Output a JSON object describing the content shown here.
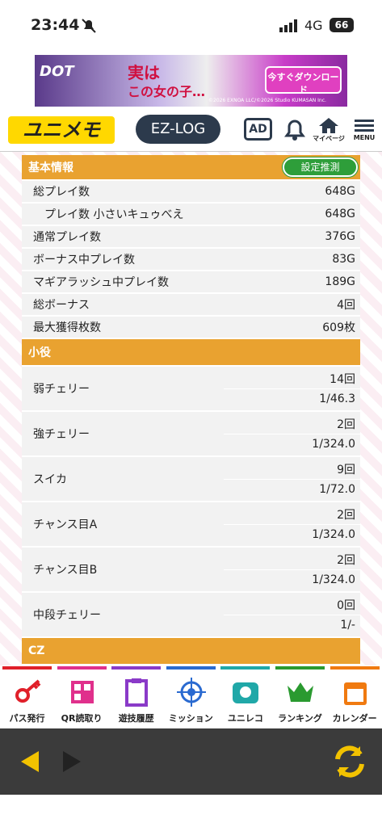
{
  "status_bar": {
    "time": "23:44",
    "network": "4G",
    "battery": "66"
  },
  "ad_banner": {
    "logo": "DOT",
    "headline_1": "実は",
    "headline_2": "この女の子…",
    "button": "今すぐダウンロード",
    "copyright": "©2026 EXNOA LLC/©2026 Studio KUMASAN Inc."
  },
  "header": {
    "logo": "ユニメモ",
    "ez_log": "EZ-LOG",
    "ad": "AD",
    "mypage": "マイページ",
    "menu": "MENU"
  },
  "basic_info": {
    "title": "基本情報",
    "button": "設定推測",
    "rows": [
      [
        "総プレイ数",
        "648G"
      ],
      [
        "プレイ数 小さいキュゥべえ",
        "648G"
      ],
      [
        "通常プレイ数",
        "376G"
      ],
      [
        "ボーナス中プレイ数",
        "83G"
      ],
      [
        "マギアラッシュ中プレイ数",
        "189G"
      ],
      [
        "総ボーナス",
        "4回"
      ],
      [
        "最大獲得枚数",
        "609枚"
      ]
    ]
  },
  "small_roles": {
    "title": "小役",
    "rows": [
      [
        "弱チェリー",
        "14回",
        "1/46.3"
      ],
      [
        "強チェリー",
        "2回",
        "1/324.0"
      ],
      [
        "スイカ",
        "9回",
        "1/72.0"
      ],
      [
        "チャンス目A",
        "2回",
        "1/324.0"
      ],
      [
        "チャンス目B",
        "2回",
        "1/324.0"
      ],
      [
        "中段チェリー",
        "0回",
        "1/-"
      ]
    ]
  },
  "cz": {
    "title": "CZ"
  },
  "nav": {
    "items": [
      "パス発行",
      "QR読取り",
      "遊技履歴",
      "ミッション",
      "ユニレコ",
      "ランキング",
      "カレンダー"
    ]
  }
}
